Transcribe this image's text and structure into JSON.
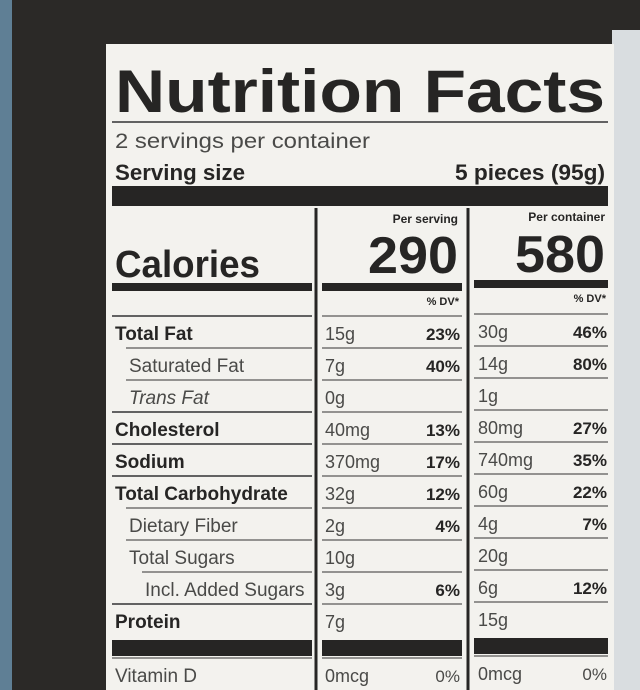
{
  "label": {
    "title": "Nutrition Facts",
    "servings": "2 servings per container",
    "serving_size_label": "Serving size",
    "serving_size": "5 pieces (95g)",
    "per_serving": "Per serving",
    "per_container": "Per container",
    "calories_label": "Calories",
    "calories_serving": "290",
    "calories_container": "580",
    "dv_header": "% DV*",
    "rows": [
      {
        "name": "Total Fat",
        "serving": "15g",
        "serving_dv": "23%",
        "container": "30g",
        "container_dv": "46%"
      },
      {
        "name": "Saturated Fat",
        "serving": "7g",
        "serving_dv": "40%",
        "container": "14g",
        "container_dv": "80%"
      },
      {
        "name": "Trans Fat",
        "serving": "0g",
        "container": "1g"
      },
      {
        "name": "Cholesterol",
        "serving": "40mg",
        "serving_dv": "13%",
        "container": "80mg",
        "container_dv": "27%"
      },
      {
        "name": "Sodium",
        "serving": "370mg",
        "serving_dv": "17%",
        "container": "740mg",
        "container_dv": "35%"
      },
      {
        "name": "Total Carbohydrate",
        "serving": "32g",
        "serving_dv": "12%",
        "container": "60g",
        "container_dv": "22%"
      },
      {
        "name": "Dietary Fiber",
        "serving": "2g",
        "serving_dv": "4%",
        "container": "4g",
        "container_dv": "7%"
      },
      {
        "name": "Total Sugars",
        "serving": "10g",
        "container": "20g"
      },
      {
        "name": "Incl. Added Sugars",
        "serving": "3g",
        "serving_dv": "6%",
        "container": "6g",
        "container_dv": "12%"
      },
      {
        "name": "Protein",
        "serving": "7g",
        "container": "15g"
      },
      {
        "name": "Vitamin D",
        "serving": "0mcg",
        "serving_dv": "0%",
        "container": "0mcg",
        "container_dv": "0%"
      }
    ]
  }
}
